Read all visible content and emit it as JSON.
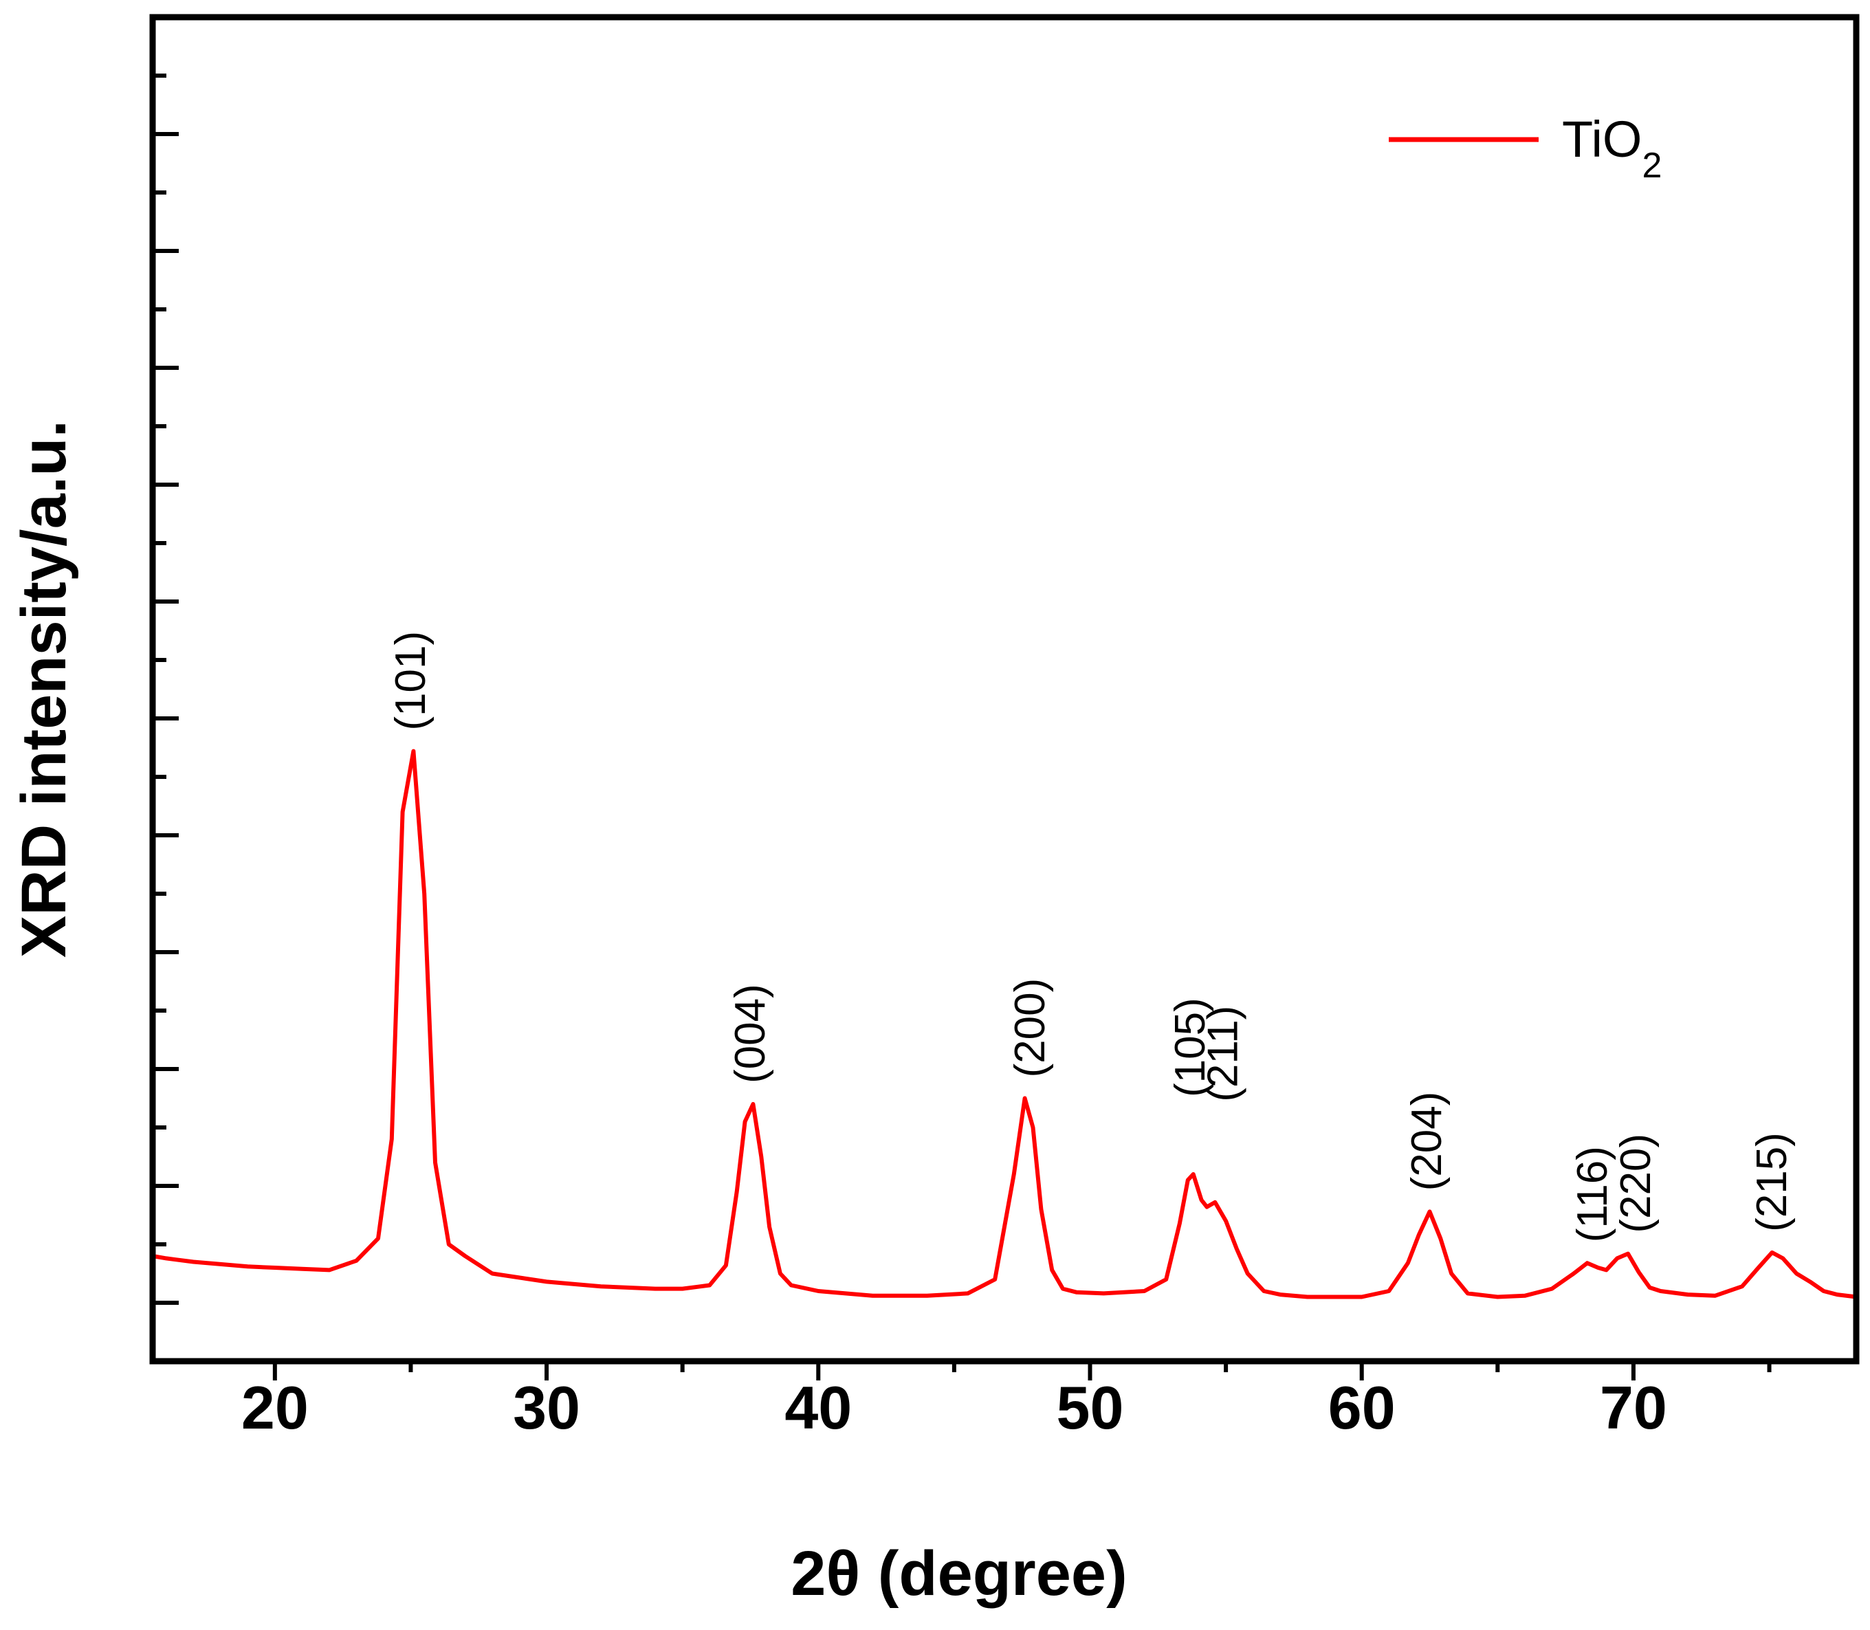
{
  "chart_data": {
    "type": "line",
    "title": "",
    "xlabel": "2θ (degree)",
    "ylabel": "XRD intensity/a.u.",
    "xlim": [
      15.5,
      78.2
    ],
    "ylim": [
      -50,
      1100
    ],
    "x_ticks": [
      20,
      30,
      40,
      50,
      60,
      70
    ],
    "x_tick_labels": [
      "20",
      "30",
      "40",
      "50",
      "60",
      "70"
    ],
    "y_tick_labels_shown": false,
    "grid": false,
    "legend": {
      "position": "top-right",
      "label_main": "TiO",
      "label_sub": "2"
    },
    "series": [
      {
        "name": "TiO2",
        "color": "#ff0000",
        "x": [
          15.5,
          16.0,
          17.0,
          18.0,
          19.0,
          20.0,
          21.0,
          22.0,
          23.0,
          23.8,
          24.3,
          24.7,
          25.1,
          25.5,
          25.9,
          26.4,
          27.0,
          28.0,
          30.0,
          32.0,
          34.0,
          35.0,
          36.0,
          36.6,
          37.0,
          37.3,
          37.6,
          37.9,
          38.2,
          38.6,
          39.0,
          40.0,
          42.0,
          44.0,
          45.5,
          46.5,
          47.2,
          47.6,
          47.9,
          48.2,
          48.6,
          49.0,
          49.5,
          50.5,
          52.0,
          52.8,
          53.3,
          53.6,
          53.8,
          54.1,
          54.3,
          54.6,
          55.0,
          55.4,
          55.8,
          56.4,
          57.0,
          58.0,
          60.0,
          61.0,
          61.7,
          62.1,
          62.5,
          62.9,
          63.3,
          63.9,
          65.0,
          66.0,
          67.0,
          67.8,
          68.3,
          68.7,
          69.0,
          69.4,
          69.8,
          70.2,
          70.6,
          71.0,
          72.0,
          73.0,
          74.0,
          74.6,
          75.1,
          75.5,
          76.0,
          76.5,
          77.0,
          77.5,
          78.2
        ],
        "y": [
          40,
          38,
          35,
          33,
          31,
          30,
          29,
          28,
          36,
          55,
          140,
          420,
          472,
          350,
          120,
          50,
          40,
          25,
          18,
          14,
          12,
          12,
          15,
          32,
          95,
          155,
          170,
          125,
          65,
          25,
          15,
          10,
          6,
          6,
          8,
          20,
          110,
          175,
          150,
          80,
          28,
          12,
          9,
          8,
          10,
          20,
          68,
          105,
          110,
          88,
          82,
          86,
          70,
          46,
          25,
          10,
          7,
          5,
          5,
          10,
          34,
          58,
          78,
          55,
          25,
          8,
          5,
          6,
          12,
          25,
          34,
          30,
          28,
          38,
          42,
          26,
          13,
          10,
          7,
          6,
          14,
          30,
          43,
          38,
          25,
          18,
          10,
          7,
          5
        ],
        "peaks": [
          {
            "x": 25.1,
            "label": "(101)"
          },
          {
            "x": 37.6,
            "label": "(004)"
          },
          {
            "x": 47.9,
            "label": "(200)"
          },
          {
            "x": 53.8,
            "label": "(105)"
          },
          {
            "x": 55.0,
            "label": "(211)"
          },
          {
            "x": 62.5,
            "label": "(204)"
          },
          {
            "x": 68.6,
            "label": "(116)"
          },
          {
            "x": 70.2,
            "label": "(220)"
          },
          {
            "x": 75.2,
            "label": "(215)"
          }
        ]
      }
    ]
  }
}
